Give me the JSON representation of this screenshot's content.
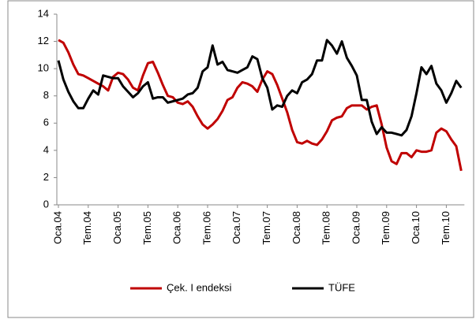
{
  "chart_data": {
    "type": "line",
    "categories": [
      "Oca.04",
      null,
      null,
      null,
      null,
      null,
      "Tem.04",
      null,
      null,
      null,
      null,
      null,
      "Oca.05",
      null,
      null,
      null,
      null,
      null,
      "Tem.05",
      null,
      null,
      null,
      null,
      null,
      "Oca.06",
      null,
      null,
      null,
      null,
      null,
      "Tem.06",
      null,
      null,
      null,
      null,
      null,
      "Oca.07",
      null,
      null,
      null,
      null,
      null,
      "Tem.07",
      null,
      null,
      null,
      null,
      null,
      "Oca.08",
      null,
      null,
      null,
      null,
      null,
      "Tem.08",
      null,
      null,
      null,
      null,
      null,
      "Oca.09",
      null,
      null,
      null,
      null,
      null,
      "Tem.09",
      null,
      null,
      null,
      null,
      null,
      "Oca.10",
      null,
      null,
      null,
      null,
      null,
      "Tem.10",
      null,
      null,
      null
    ],
    "series": [
      {
        "name": "Çek. I endeksi",
        "color": "#c00000",
        "values": [
          12.1,
          11.9,
          11.2,
          10.3,
          9.6,
          9.5,
          9.3,
          9.1,
          8.9,
          8.7,
          8.4,
          9.4,
          9.7,
          9.6,
          9.2,
          8.6,
          8.4,
          9.5,
          10.4,
          10.5,
          9.7,
          8.8,
          8.0,
          7.9,
          7.5,
          7.4,
          7.6,
          7.2,
          6.5,
          5.9,
          5.6,
          5.9,
          6.3,
          6.9,
          7.7,
          7.9,
          8.6,
          9.0,
          8.9,
          8.7,
          8.3,
          9.2,
          9.8,
          9.6,
          8.8,
          7.8,
          6.8,
          5.5,
          4.6,
          4.5,
          4.7,
          4.5,
          4.4,
          4.8,
          5.4,
          6.2,
          6.4,
          6.5,
          7.1,
          7.3,
          7.3,
          7.3,
          7.0,
          7.2,
          7.3,
          5.9,
          4.2,
          3.2,
          3.0,
          3.8,
          3.8,
          3.5,
          4.0,
          3.9,
          3.9,
          4.0,
          5.3,
          5.6,
          5.4,
          4.8,
          4.3,
          2.5
        ]
      },
      {
        "name": "TÜFE",
        "color": "#000000",
        "values": [
          10.6,
          9.2,
          8.3,
          7.6,
          7.1,
          7.1,
          7.8,
          8.4,
          8.1,
          9.5,
          9.4,
          9.3,
          9.3,
          8.7,
          8.3,
          7.9,
          8.2,
          8.7,
          9.0,
          7.8,
          7.9,
          7.9,
          7.5,
          7.6,
          7.7,
          7.8,
          8.1,
          8.2,
          8.6,
          9.8,
          10.1,
          11.7,
          10.3,
          10.5,
          9.9,
          9.8,
          9.7,
          9.9,
          10.1,
          10.9,
          10.7,
          9.3,
          8.6,
          7.0,
          7.3,
          7.2,
          8.0,
          8.4,
          8.2,
          9.0,
          9.2,
          9.6,
          10.6,
          10.6,
          12.1,
          11.7,
          11.1,
          12.0,
          10.8,
          10.2,
          9.5,
          7.7,
          7.7,
          6.1,
          5.2,
          5.7,
          5.3,
          5.3,
          5.2,
          5.1,
          5.5,
          6.5,
          8.2,
          10.1,
          9.6,
          10.2,
          8.9,
          8.4,
          7.5,
          8.2,
          9.1,
          8.6
        ]
      }
    ],
    "ylim": [
      0,
      14
    ],
    "yticks": [
      0,
      2,
      4,
      6,
      8,
      10,
      12,
      14
    ],
    "grid": false,
    "legend": "bottom"
  }
}
